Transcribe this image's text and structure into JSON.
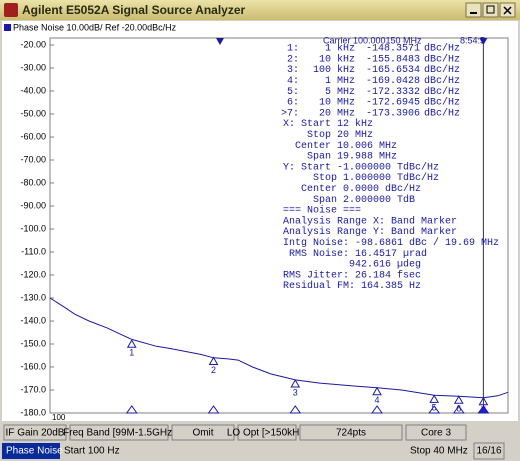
{
  "window": {
    "title": "Agilent E5052A Signal Source Analyzer"
  },
  "chart_data": {
    "type": "line",
    "title": "Phase Noise 10.00dB/ Ref -20.00dBc/Hz",
    "time": "8:54:5",
    "carrier": "Carrier 100.000150 MHz",
    "xlog": true,
    "xlim": [
      100,
      40000000
    ],
    "xticks": [
      100
    ],
    "ylim": [
      -180,
      -20
    ],
    "yticks": [
      {
        "value": -20,
        "label": "-20.00"
      },
      {
        "value": -30,
        "label": "-30.00"
      },
      {
        "value": -40,
        "label": "-40.00"
      },
      {
        "value": -50,
        "label": "-50.00"
      },
      {
        "value": -60,
        "label": "-60.00"
      },
      {
        "value": -70,
        "label": "-70.00"
      },
      {
        "value": -80,
        "label": "-80.00"
      },
      {
        "value": -90,
        "label": "-90.00"
      },
      {
        "value": -100,
        "label": "-100.0"
      },
      {
        "value": -110,
        "label": "-110.0"
      },
      {
        "value": -120,
        "label": "-120.0"
      },
      {
        "value": -130,
        "label": "-130.0"
      },
      {
        "value": -140,
        "label": "-140.0"
      },
      {
        "value": -150,
        "label": "-150.0"
      },
      {
        "value": -160,
        "label": "-160.0"
      },
      {
        "value": -170,
        "label": "-170.0"
      },
      {
        "value": -180,
        "label": "-180.0"
      }
    ],
    "series": [
      {
        "name": "Phase Noise",
        "color": "#1a1aa0",
        "x": [
          100,
          150,
          200,
          300,
          500,
          700,
          1000,
          2000,
          3000,
          5000,
          7000,
          10000,
          15000,
          20000,
          30000,
          50000,
          100000,
          200000,
          500000,
          1000000,
          2000000,
          5000000,
          10000000,
          20000000,
          30000000,
          40000000
        ],
        "values": [
          -130,
          -134,
          -137,
          -140,
          -143,
          -145.5,
          -148,
          -151,
          -152,
          -153.5,
          -154.5,
          -156,
          -156.5,
          -157,
          -160,
          -163,
          -165.6,
          -167,
          -168.2,
          -169,
          -170,
          -172.3,
          -172.7,
          -173.4,
          -172.5,
          -171
        ]
      }
    ],
    "band_start": 12000,
    "band_stop": 20000000,
    "markers": [
      {
        "id": "1",
        "label": "1:",
        "freq": "1 kHz",
        "x": 1000,
        "value": -148.3571,
        "unit": "dBc/Hz"
      },
      {
        "id": "2",
        "label": "2:",
        "freq": "10 kHz",
        "x": 10000,
        "value": -155.8483,
        "unit": "dBc/Hz"
      },
      {
        "id": "3",
        "label": "3:",
        "freq": "100 kHz",
        "x": 100000,
        "value": -165.6534,
        "unit": "dBc/Hz"
      },
      {
        "id": "4",
        "label": "4:",
        "freq": "1 MHz",
        "x": 1000000,
        "value": -169.0428,
        "unit": "dBc/Hz"
      },
      {
        "id": "5",
        "label": "5:",
        "freq": "5 MHz",
        "x": 5000000,
        "value": -172.3332,
        "unit": "dBc/Hz"
      },
      {
        "id": "6",
        "label": "6:",
        "freq": "10 MHz",
        "x": 10000000,
        "value": -172.6945,
        "unit": "dBc/Hz"
      },
      {
        "id": "7",
        "label": ">7:",
        "freq": "20 MHz",
        "x": 20000000,
        "value": -173.3906,
        "unit": "dBc/Hz"
      }
    ],
    "annotations": [
      "X: Start 12 kHz",
      "    Stop 20 MHz",
      "  Center 10.006 MHz",
      "    Span 19.988 MHz",
      "Y: Start -1.000000 TdBc/Hz",
      "     Stop 1.000000 TdBc/Hz",
      "   Center 0.0000 dBc/Hz",
      "     Span 2.000000 TdB",
      "=== Noise ===",
      "Analysis Range X: Band Marker",
      "Analysis Range Y: Band Marker",
      "Intg Noise: -98.6861 dBc / 19.69 MHz",
      " RMS Noise: 16.4517 µrad",
      "           942.616 µdeg",
      "RMS Jitter: 26.184 fsec",
      "Residual FM: 164.385 Hz"
    ]
  },
  "status_bar": [
    "IF Gain 20dB",
    "Freq Band [99M-1.5GHz]",
    "Omit",
    "LO Opt [>150kHz]",
    "724pts",
    "Core 3"
  ],
  "footer": {
    "mode": "Phase Noise",
    "start": "Start 100 Hz",
    "stop": "Stop 40 MHz",
    "page": "16/16"
  }
}
